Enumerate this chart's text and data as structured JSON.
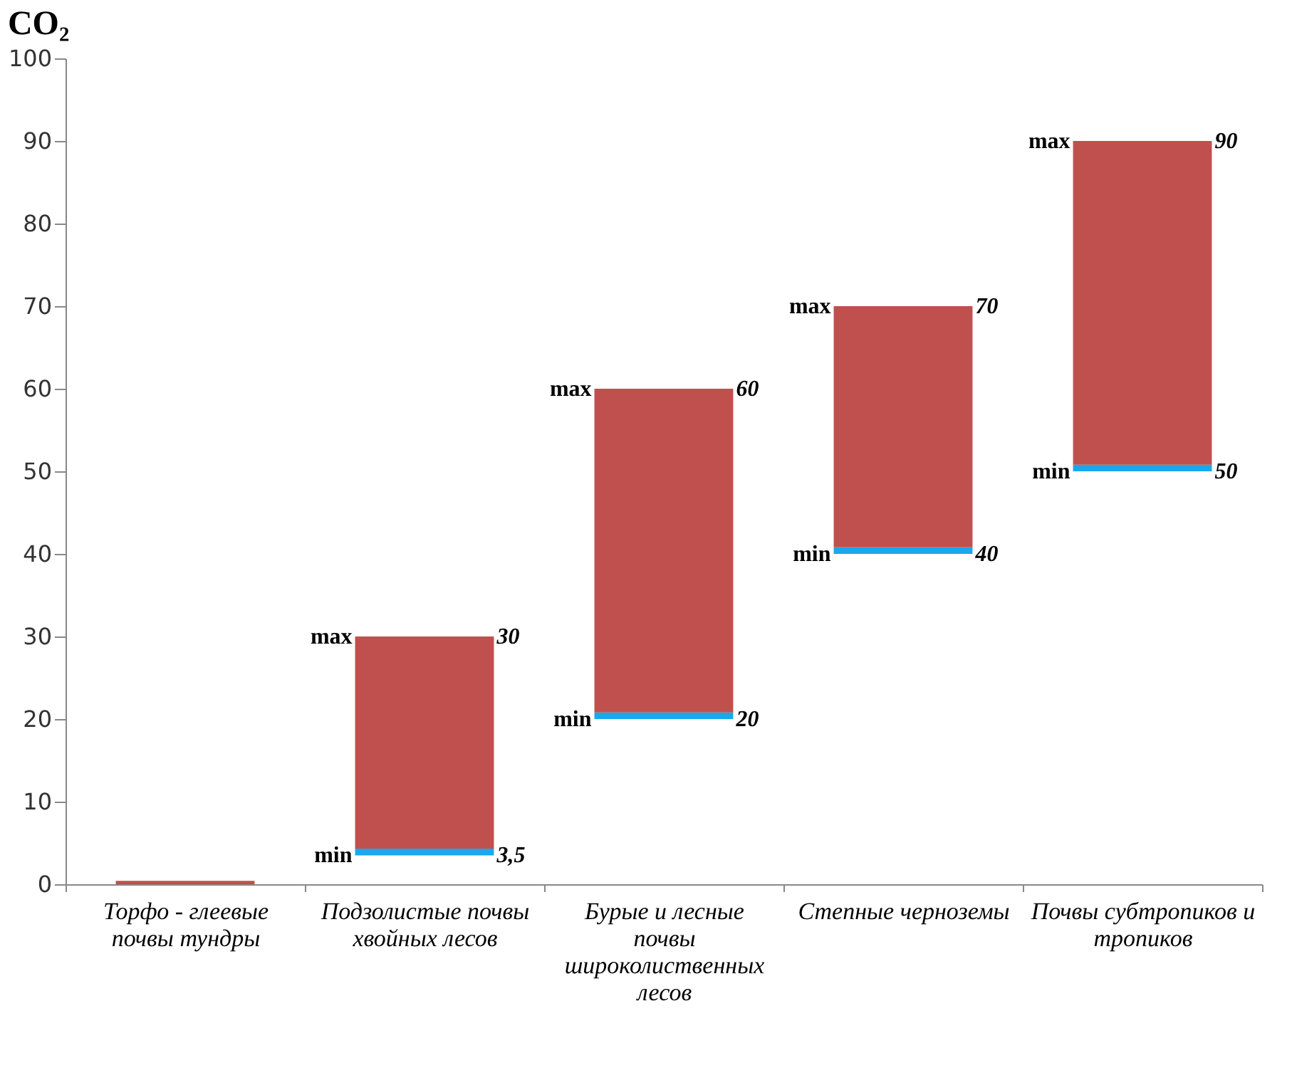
{
  "chart_data": {
    "type": "bar",
    "title": "CO₂",
    "categories": [
      "Торфо - глеевые почвы тундры",
      "Подзолистые почвы хвойных лесов",
      "Бурые и лесные почвы широколиственных лесов",
      "Степные черноземы",
      "Почвы субтропиков и тропиков"
    ],
    "series": [
      {
        "color": "#1aa7ec",
        "base": [
          null,
          3.5,
          20,
          40,
          50
        ],
        "values": [
          null,
          0.8,
          0.8,
          0.8,
          0.8
        ]
      },
      {
        "color": "#c0504d",
        "base": [
          0,
          4.3,
          20.8,
          40.8,
          50.8
        ],
        "values": [
          0.4,
          25.7,
          39.2,
          29.2,
          39.2
        ],
        "value_labels": [
          null,
          "30",
          "60",
          "70",
          "90"
        ]
      }
    ],
    "annotations": [
      "max",
      "min",
      "3,5",
      "max",
      "min",
      "20",
      "max",
      "min",
      "40",
      "max",
      "min",
      "50"
    ],
    "ylim": [
      0,
      100
    ],
    "yticks": [
      0,
      10,
      20,
      30,
      40,
      50,
      60,
      70,
      80,
      90,
      100
    ],
    "grid": false
  }
}
